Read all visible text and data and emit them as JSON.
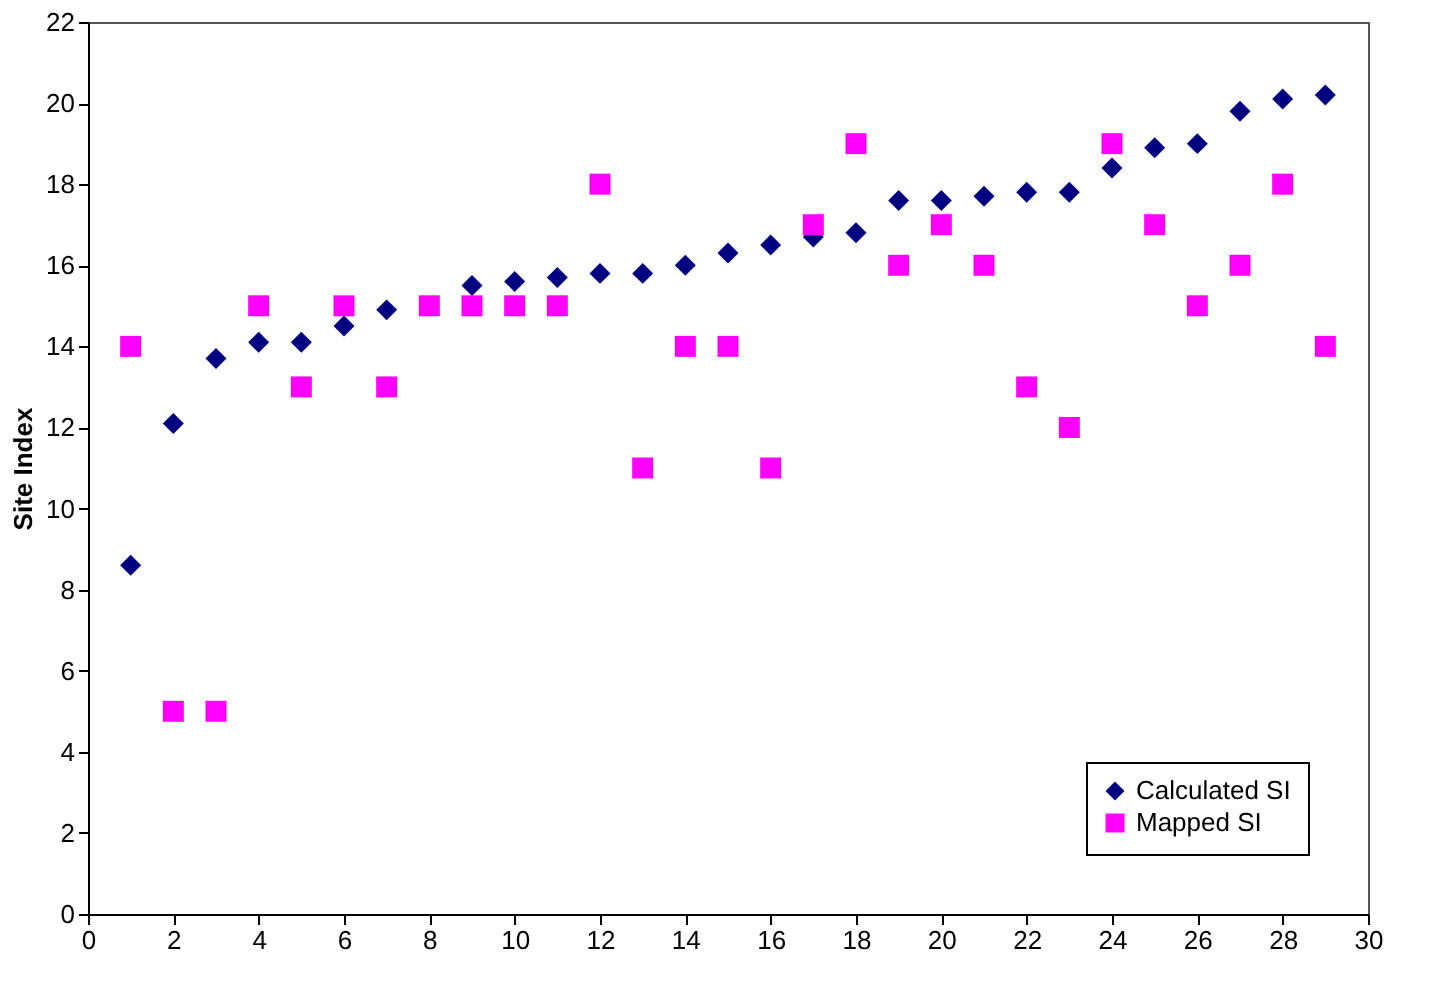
{
  "chart_data": {
    "type": "scatter",
    "ylabel": "Site Index",
    "x": [
      1,
      2,
      3,
      4,
      5,
      6,
      7,
      8,
      9,
      10,
      11,
      12,
      13,
      14,
      15,
      16,
      17,
      18,
      19,
      20,
      21,
      22,
      23,
      24,
      25,
      26,
      27,
      28,
      29
    ],
    "series": [
      {
        "name": "Calculated SI",
        "color": "#000080",
        "marker": "diamond",
        "values": [
          8.6,
          12.1,
          13.7,
          14.1,
          14.1,
          14.5,
          14.9,
          null,
          15.5,
          15.6,
          15.7,
          15.8,
          15.8,
          16.0,
          16.3,
          16.5,
          16.7,
          16.8,
          17.6,
          17.6,
          17.7,
          17.8,
          17.8,
          18.4,
          18.9,
          19.0,
          19.8,
          20.1,
          20.2
        ]
      },
      {
        "name": "Mapped SI",
        "color": "#ff00ff",
        "marker": "square",
        "values": [
          14,
          5,
          5,
          15,
          13,
          15,
          13,
          15,
          15,
          15,
          15,
          18,
          11,
          14,
          14,
          11,
          17,
          19,
          16,
          17,
          16,
          13,
          12,
          19,
          17,
          15,
          16,
          18,
          14
        ]
      }
    ],
    "xlim": [
      0,
      30
    ],
    "xticks": [
      0,
      2,
      4,
      6,
      8,
      10,
      12,
      14,
      16,
      18,
      20,
      22,
      24,
      26,
      28,
      30
    ],
    "ylim": [
      0,
      22
    ],
    "yticks": [
      0,
      2,
      4,
      6,
      8,
      10,
      12,
      14,
      16,
      18,
      20,
      22
    ],
    "grid": false,
    "legend": "bottom right"
  }
}
